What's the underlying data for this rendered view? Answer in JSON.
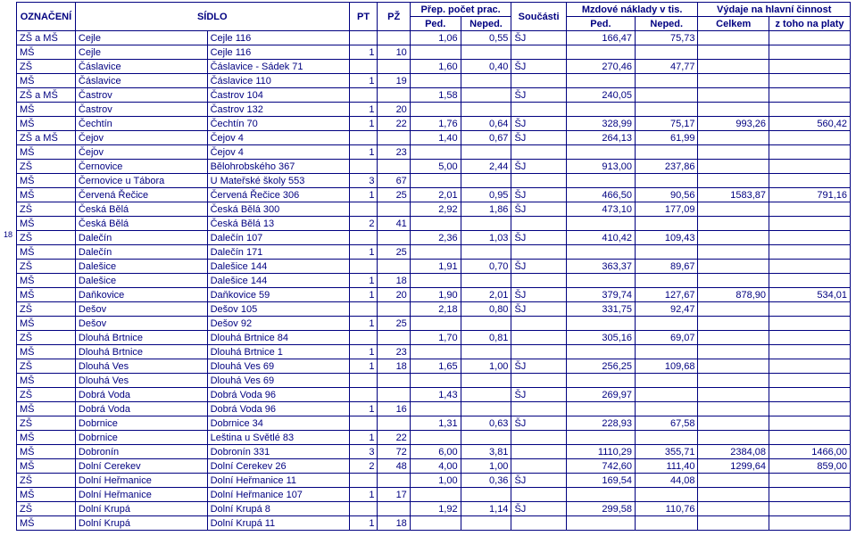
{
  "page_number": "18",
  "header": {
    "oz": "OZNAČENÍ",
    "sidlo": "SÍDLO",
    "pt": "PT",
    "pz": "PŽ",
    "prep_group": "Přep. počet prac.",
    "ped": "Ped.",
    "neped": "Neped.",
    "soucasti": "Součásti",
    "mzd_group": "Mzdové náklady v tis.",
    "vyd_group": "Výdaje na hlavní činnost",
    "celkem": "Celkem",
    "ztoho": "z toho na platy"
  },
  "rows": [
    {
      "oz": "ZŠ a MŠ",
      "ob": "Cejle",
      "adr": "Cejle 116",
      "pt": "",
      "pz": "",
      "p": "1,06",
      "np": "0,55",
      "s": "ŠJ",
      "mp": "166,47",
      "mn": "75,73",
      "c": "",
      "z": ""
    },
    {
      "oz": "MŠ",
      "ob": "Cejle",
      "adr": "Cejle 116",
      "pt": "1",
      "pz": "10",
      "p": "",
      "np": "",
      "s": "",
      "mp": "",
      "mn": "",
      "c": "",
      "z": ""
    },
    {
      "oz": "ZŠ",
      "ob": "Čáslavice",
      "adr": "Čáslavice - Sádek 71",
      "pt": "",
      "pz": "",
      "p": "1,60",
      "np": "0,40",
      "s": "ŠJ",
      "mp": "270,46",
      "mn": "47,77",
      "c": "",
      "z": ""
    },
    {
      "oz": "MŠ",
      "ob": "Čáslavice",
      "adr": "Čáslavice 110",
      "pt": "1",
      "pz": "19",
      "p": "",
      "np": "",
      "s": "",
      "mp": "",
      "mn": "",
      "c": "",
      "z": ""
    },
    {
      "oz": "ZŠ a MŠ",
      "ob": "Častrov",
      "adr": "Častrov 104",
      "pt": "",
      "pz": "",
      "p": "1,58",
      "np": "",
      "s": "ŠJ",
      "mp": "240,05",
      "mn": "",
      "c": "",
      "z": ""
    },
    {
      "oz": "MŠ",
      "ob": "Častrov",
      "adr": "Častrov 132",
      "pt": "1",
      "pz": "20",
      "p": "",
      "np": "",
      "s": "",
      "mp": "",
      "mn": "",
      "c": "",
      "z": ""
    },
    {
      "oz": "MŠ",
      "ob": "Čechtín",
      "adr": "Čechtín 70",
      "pt": "1",
      "pz": "22",
      "p": "1,76",
      "np": "0,64",
      "s": "ŠJ",
      "mp": "328,99",
      "mn": "75,17",
      "c": "993,26",
      "z": "560,42"
    },
    {
      "oz": "ZŠ a MŠ",
      "ob": "Čejov",
      "adr": "Čejov 4",
      "pt": "",
      "pz": "",
      "p": "1,40",
      "np": "0,67",
      "s": "ŠJ",
      "mp": "264,13",
      "mn": "61,99",
      "c": "",
      "z": ""
    },
    {
      "oz": "MŠ",
      "ob": "Čejov",
      "adr": "Čejov 4",
      "pt": "1",
      "pz": "23",
      "p": "",
      "np": "",
      "s": "",
      "mp": "",
      "mn": "",
      "c": "",
      "z": ""
    },
    {
      "oz": "ZŠ",
      "ob": "Černovice",
      "adr": "Bělohrobského 367",
      "pt": "",
      "pz": "",
      "p": "5,00",
      "np": "2,44",
      "s": "ŠJ",
      "mp": "913,00",
      "mn": "237,86",
      "c": "",
      "z": ""
    },
    {
      "oz": "MŠ",
      "ob": "Černovice u Tábora",
      "adr": "U Mateřské školy 553",
      "pt": "3",
      "pz": "67",
      "p": "",
      "np": "",
      "s": "",
      "mp": "",
      "mn": "",
      "c": "",
      "z": ""
    },
    {
      "oz": "MŠ",
      "ob": "Červená Řečice",
      "adr": "Červená Řečice 306",
      "pt": "1",
      "pz": "25",
      "p": "2,01",
      "np": "0,95",
      "s": "ŠJ",
      "mp": "466,50",
      "mn": "90,56",
      "c": "1583,87",
      "z": "791,16"
    },
    {
      "oz": "ZŠ",
      "ob": "Česká Bělá",
      "adr": "Česká Bělá 300",
      "pt": "",
      "pz": "",
      "p": "2,92",
      "np": "1,86",
      "s": "ŠJ",
      "mp": "473,10",
      "mn": "177,09",
      "c": "",
      "z": ""
    },
    {
      "oz": "MŠ",
      "ob": "Česká Bělá",
      "adr": "Česká Bělá 13",
      "pt": "2",
      "pz": "41",
      "p": "",
      "np": "",
      "s": "",
      "mp": "",
      "mn": "",
      "c": "",
      "z": ""
    },
    {
      "oz": "ZŠ",
      "ob": "Dalečín",
      "adr": "Dalečín 107",
      "pt": "",
      "pz": "",
      "p": "2,36",
      "np": "1,03",
      "s": "ŠJ",
      "mp": "410,42",
      "mn": "109,43",
      "c": "",
      "z": ""
    },
    {
      "oz": "MŠ",
      "ob": "Dalečín",
      "adr": "Dalečín 171",
      "pt": "1",
      "pz": "25",
      "p": "",
      "np": "",
      "s": "",
      "mp": "",
      "mn": "",
      "c": "",
      "z": ""
    },
    {
      "oz": "ZŠ",
      "ob": "Dalešice",
      "adr": "Dalešice 144",
      "pt": "",
      "pz": "",
      "p": "1,91",
      "np": "0,70",
      "s": "ŠJ",
      "mp": "363,37",
      "mn": "89,67",
      "c": "",
      "z": ""
    },
    {
      "oz": "MŠ",
      "ob": "Dalešice",
      "adr": "Dalešice 144",
      "pt": "1",
      "pz": "18",
      "p": "",
      "np": "",
      "s": "",
      "mp": "",
      "mn": "",
      "c": "",
      "z": ""
    },
    {
      "oz": "MŠ",
      "ob": "Daňkovice",
      "adr": "Daňkovice 59",
      "pt": "1",
      "pz": "20",
      "p": "1,90",
      "np": "2,01",
      "s": "ŠJ",
      "mp": "379,74",
      "mn": "127,67",
      "c": "878,90",
      "z": "534,01"
    },
    {
      "oz": "ZŠ",
      "ob": "Dešov",
      "adr": "Dešov 105",
      "pt": "",
      "pz": "",
      "p": "2,18",
      "np": "0,80",
      "s": "ŠJ",
      "mp": "331,75",
      "mn": "92,47",
      "c": "",
      "z": ""
    },
    {
      "oz": "MŠ",
      "ob": "Dešov",
      "adr": "Dešov 92",
      "pt": "1",
      "pz": "25",
      "p": "",
      "np": "",
      "s": "",
      "mp": "",
      "mn": "",
      "c": "",
      "z": ""
    },
    {
      "oz": "ZŠ",
      "ob": "Dlouhá Brtnice",
      "adr": "Dlouhá Brtnice 84",
      "pt": "",
      "pz": "",
      "p": "1,70",
      "np": "0,81",
      "s": "",
      "mp": "305,16",
      "mn": "69,07",
      "c": "",
      "z": ""
    },
    {
      "oz": "MŠ",
      "ob": "Dlouhá Brtnice",
      "adr": "Dlouhá Brtnice 1",
      "pt": "1",
      "pz": "23",
      "p": "",
      "np": "",
      "s": "",
      "mp": "",
      "mn": "",
      "c": "",
      "z": ""
    },
    {
      "oz": "ZŠ",
      "ob": "Dlouhá Ves",
      "adr": "Dlouhá Ves 69",
      "pt": "1",
      "pz": "18",
      "p": "1,65",
      "np": "1,00",
      "s": "ŠJ",
      "mp": "256,25",
      "mn": "109,68",
      "c": "",
      "z": ""
    },
    {
      "oz": "MŠ",
      "ob": "Dlouhá Ves",
      "adr": "Dlouhá Ves 69",
      "pt": "",
      "pz": "",
      "p": "",
      "np": "",
      "s": "",
      "mp": "",
      "mn": "",
      "c": "",
      "z": ""
    },
    {
      "oz": "ZŠ",
      "ob": "Dobrá Voda",
      "adr": "Dobrá Voda 96",
      "pt": "",
      "pz": "",
      "p": "1,43",
      "np": "",
      "s": "ŠJ",
      "mp": "269,97",
      "mn": "",
      "c": "",
      "z": ""
    },
    {
      "oz": "MŠ",
      "ob": "Dobrá Voda",
      "adr": "Dobrá Voda 96",
      "pt": "1",
      "pz": "16",
      "p": "",
      "np": "",
      "s": "",
      "mp": "",
      "mn": "",
      "c": "",
      "z": ""
    },
    {
      "oz": "ZŠ",
      "ob": "Dobrnice",
      "adr": "Dobrnice 34",
      "pt": "",
      "pz": "",
      "p": "1,31",
      "np": "0,63",
      "s": "ŠJ",
      "mp": "228,93",
      "mn": "67,58",
      "c": "",
      "z": ""
    },
    {
      "oz": "MŠ",
      "ob": "Dobrnice",
      "adr": "Leština u Světlé 83",
      "pt": "1",
      "pz": "22",
      "p": "",
      "np": "",
      "s": "",
      "mp": "",
      "mn": "",
      "c": "",
      "z": ""
    },
    {
      "oz": "MŠ",
      "ob": "Dobronín",
      "adr": "Dobronín 331",
      "pt": "3",
      "pz": "72",
      "p": "6,00",
      "np": "3,81",
      "s": "",
      "mp": "1110,29",
      "mn": "355,71",
      "c": "2384,08",
      "z": "1466,00"
    },
    {
      "oz": "MŠ",
      "ob": "Dolní Cerekev",
      "adr": "Dolní Cerekev 26",
      "pt": "2",
      "pz": "48",
      "p": "4,00",
      "np": "1,00",
      "s": "",
      "mp": "742,60",
      "mn": "111,40",
      "c": "1299,64",
      "z": "859,00"
    },
    {
      "oz": "ZŠ",
      "ob": "Dolní Heřmanice",
      "adr": "Dolní Heřmanice 11",
      "pt": "",
      "pz": "",
      "p": "1,00",
      "np": "0,36",
      "s": "ŠJ",
      "mp": "169,54",
      "mn": "44,08",
      "c": "",
      "z": ""
    },
    {
      "oz": "MŠ",
      "ob": "Dolní Heřmanice",
      "adr": "Dolní Heřmanice 107",
      "pt": "1",
      "pz": "17",
      "p": "",
      "np": "",
      "s": "",
      "mp": "",
      "mn": "",
      "c": "",
      "z": ""
    },
    {
      "oz": "ZŠ",
      "ob": "Dolní Krupá",
      "adr": "Dolní Krupá 8",
      "pt": "",
      "pz": "",
      "p": "1,92",
      "np": "1,14",
      "s": "ŠJ",
      "mp": "299,58",
      "mn": "110,76",
      "c": "",
      "z": ""
    },
    {
      "oz": "MŠ",
      "ob": "Dolní Krupá",
      "adr": "Dolní Krupá 11",
      "pt": "1",
      "pz": "18",
      "p": "",
      "np": "",
      "s": "",
      "mp": "",
      "mn": "",
      "c": "",
      "z": ""
    }
  ]
}
